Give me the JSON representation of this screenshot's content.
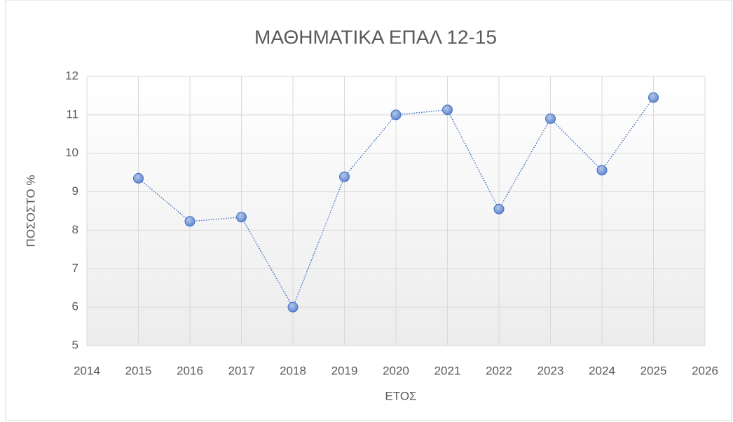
{
  "chart_data": {
    "type": "line",
    "title": "ΜΑΘΗΜΑΤΙΚΑ ΕΠΑΛ 12-15",
    "x_label": "ΕΤΟΣ",
    "y_label": "ΠΟΣΟΣΤΟ %",
    "series": [
      {
        "name": "ΜΑΘΗΜΑΤΙΚΑ",
        "color": "#4472c4",
        "x": [
          2015,
          2016,
          2017,
          2018,
          2019,
          2020,
          2021,
          2022,
          2023,
          2024,
          2025
        ],
        "values": [
          9.35,
          8.23,
          8.34,
          6.0,
          9.39,
          11.0,
          11.13,
          8.55,
          10.9,
          9.56,
          11.45
        ]
      }
    ],
    "xlim": [
      2014,
      2026
    ],
    "xticks": [
      2014,
      2015,
      2016,
      2017,
      2018,
      2019,
      2020,
      2021,
      2022,
      2023,
      2024,
      2025,
      2026
    ],
    "ylim": [
      5,
      12
    ],
    "yticks": [
      5,
      6,
      7,
      8,
      9,
      10,
      11,
      12
    ],
    "grid": true
  }
}
